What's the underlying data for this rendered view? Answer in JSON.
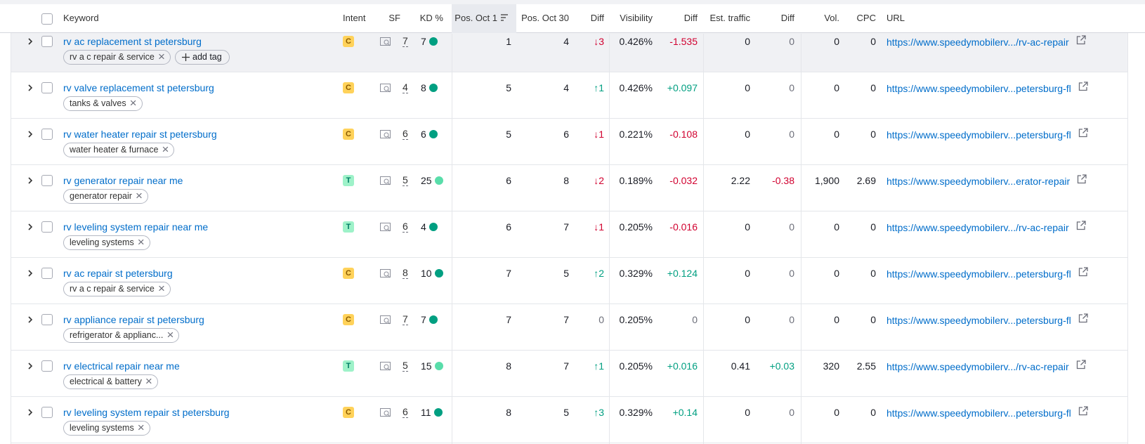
{
  "table": {
    "headers": [
      "Keyword",
      "Intent",
      "SF",
      "KD %",
      "Pos. Oct 1",
      "Pos. Oct 30",
      "Diff",
      "Visibility",
      "Diff",
      "Est. traffic",
      "Diff",
      "Vol.",
      "CPC",
      "URL"
    ],
    "rows": [
      {
        "keyword": "rv ac replacement st petersburg",
        "tags": [
          "rv a c repair & service"
        ],
        "add_tag": "add tag",
        "intent": "C",
        "intent_color": "#ffd25a",
        "sf": "7",
        "kd": "7",
        "kd_color": "#009f81",
        "pos_oct1": "1",
        "pos_oct30": "4",
        "diff": "↓3",
        "visibility": "0.426%",
        "visibility_diff": "-1.535",
        "traffic": "0",
        "traffic_diff": "0",
        "volume": "0",
        "cpc": "0",
        "url": "https://www.speedymobilerv.../rv-ac-repair"
      },
      {
        "keyword": "rv valve replacement st petersburg",
        "tags": [
          "tanks & valves"
        ],
        "intent": "C",
        "intent_color": "#ffd25a",
        "sf": "4",
        "kd": "8",
        "kd_color": "#009f81",
        "pos_oct1": "5",
        "pos_oct30": "4",
        "diff": "↑1",
        "visibility": "0.426%",
        "visibility_diff": "+0.097",
        "traffic": "0",
        "traffic_diff": "0",
        "volume": "0",
        "cpc": "0",
        "url": "https://www.speedymobilerv...petersburg-fl"
      },
      {
        "keyword": "rv water heater repair st petersburg",
        "tags": [
          "water heater & furnace"
        ],
        "intent": "C",
        "intent_color": "#ffd25a",
        "sf": "6",
        "kd": "6",
        "kd_color": "#009f81",
        "pos_oct1": "5",
        "pos_oct30": "6",
        "diff": "↓1",
        "visibility": "0.221%",
        "visibility_diff": "-0.108",
        "traffic": "0",
        "traffic_diff": "0",
        "volume": "0",
        "cpc": "0",
        "url": "https://www.speedymobilerv...petersburg-fl"
      },
      {
        "keyword": "rv generator repair near me",
        "tags": [
          "generator repair"
        ],
        "intent": "T",
        "intent_color": "#9ef2c9",
        "sf": "5",
        "kd": "25",
        "kd_color": "#59ddaa",
        "pos_oct1": "6",
        "pos_oct30": "8",
        "diff": "↓2",
        "visibility": "0.189%",
        "visibility_diff": "-0.032",
        "traffic": "2.22",
        "traffic_diff": "-0.38",
        "volume": "1,900",
        "cpc": "2.69",
        "url": "https://www.speedymobilerv...erator-repair"
      },
      {
        "keyword": "rv leveling system repair near me",
        "tags": [
          "leveling systems"
        ],
        "intent": "T",
        "intent_color": "#9ef2c9",
        "sf": "6",
        "kd": "4",
        "kd_color": "#009f81",
        "pos_oct1": "6",
        "pos_oct30": "7",
        "diff": "↓1",
        "visibility": "0.205%",
        "visibility_diff": "-0.016",
        "traffic": "0",
        "traffic_diff": "0",
        "volume": "0",
        "cpc": "0",
        "url": "https://www.speedymobilerv.../rv-ac-repair"
      },
      {
        "keyword": "rv ac repair st petersburg",
        "tags": [
          "rv a c repair & service"
        ],
        "intent": "C",
        "intent_color": "#ffd25a",
        "sf": "8",
        "kd": "10",
        "kd_color": "#009f81",
        "pos_oct1": "7",
        "pos_oct30": "5",
        "diff": "↑2",
        "visibility": "0.329%",
        "visibility_diff": "+0.124",
        "traffic": "0",
        "traffic_diff": "0",
        "volume": "0",
        "cpc": "0",
        "url": "https://www.speedymobilerv...petersburg-fl"
      },
      {
        "keyword": "rv appliance repair st petersburg",
        "tags": [
          "refrigerator & applianc..."
        ],
        "intent": "C",
        "intent_color": "#ffd25a",
        "sf": "7",
        "kd": "7",
        "kd_color": "#009f81",
        "pos_oct1": "7",
        "pos_oct30": "7",
        "diff": "0",
        "visibility": "0.205%",
        "visibility_diff": "0",
        "traffic": "0",
        "traffic_diff": "0",
        "volume": "0",
        "cpc": "0",
        "url": "https://www.speedymobilerv...petersburg-fl"
      },
      {
        "keyword": "rv electrical repair near me",
        "tags": [
          "electrical & battery"
        ],
        "intent": "T",
        "intent_color": "#9ef2c9",
        "sf": "5",
        "kd": "15",
        "kd_color": "#59ddaa",
        "pos_oct1": "8",
        "pos_oct30": "7",
        "diff": "↑1",
        "visibility": "0.205%",
        "visibility_diff": "+0.016",
        "traffic": "0.41",
        "traffic_diff": "+0.03",
        "volume": "320",
        "cpc": "2.55",
        "url": "https://www.speedymobilerv.../rv-ac-repair"
      },
      {
        "keyword": "rv leveling system repair st petersburg",
        "tags": [
          "leveling systems"
        ],
        "intent": "C",
        "intent_color": "#ffd25a",
        "sf": "6",
        "kd": "11",
        "kd_color": "#009f81",
        "pos_oct1": "8",
        "pos_oct30": "5",
        "diff": "↑3",
        "visibility": "0.329%",
        "visibility_diff": "+0.14",
        "traffic": "0",
        "traffic_diff": "0",
        "volume": "0",
        "cpc": "0",
        "url": "https://www.speedymobilerv...petersburg-fl"
      }
    ]
  }
}
